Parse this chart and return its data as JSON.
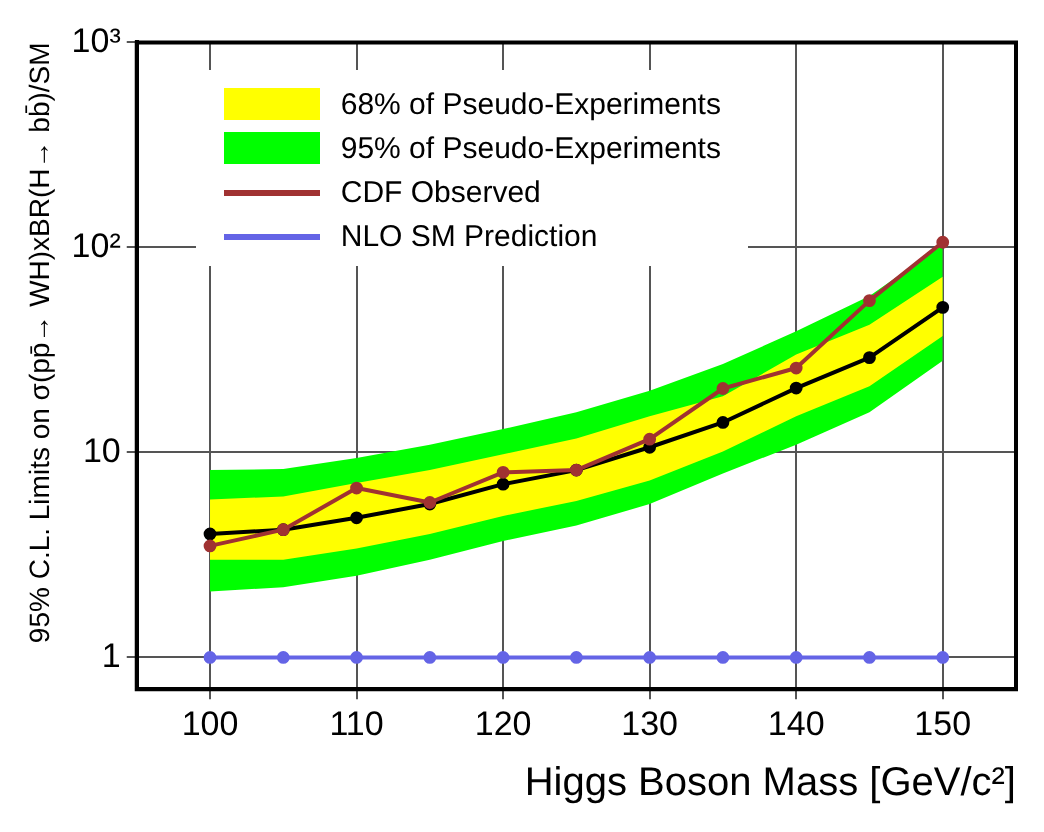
{
  "chart_data": {
    "type": "line",
    "xlabel": "Higgs Boson Mass [GeV/c²]",
    "ylabel": "95% C.L. Limits on σ(pp̄→ WH)xBR(H→ bb̄)/SM",
    "x": [
      100,
      105,
      110,
      115,
      120,
      125,
      130,
      135,
      140,
      145,
      150
    ],
    "series": [
      {
        "name": "68% of Pseudo-Experiments",
        "color": "#ffff00",
        "values": [
          null,
          null,
          null,
          null,
          null,
          null,
          null,
          null,
          null,
          null,
          null
        ],
        "lower": [
          3.0,
          3.0,
          3.4,
          4.0,
          4.9,
          5.8,
          7.3,
          10.1,
          15,
          21,
          37
        ],
        "upper": [
          5.9,
          6.1,
          7.1,
          8.2,
          9.8,
          11.7,
          15,
          18.8,
          30,
          42,
          72
        ]
      },
      {
        "name": "95% of Pseudo-Experiments",
        "color": "#00ff00",
        "values": [
          null,
          null,
          null,
          null,
          null,
          null,
          null,
          null,
          null,
          null,
          null
        ],
        "lower": [
          2.1,
          2.2,
          2.5,
          3.0,
          3.7,
          4.4,
          5.6,
          7.9,
          10.9,
          15.7,
          28
        ],
        "upper": [
          8.2,
          8.3,
          9.4,
          10.9,
          13,
          15.7,
          20,
          27,
          39,
          58,
          103
        ]
      },
      {
        "name": "CDF Observed",
        "color": "#a03232",
        "values": [
          3.5,
          4.2,
          6.7,
          5.7,
          8.0,
          8.2,
          11.6,
          20.5,
          25.8,
          55,
          106
        ]
      },
      {
        "name": "NLO SM Prediction",
        "color": "#6464e6",
        "values": [
          1,
          1,
          1,
          1,
          1,
          1,
          1,
          1,
          1,
          1,
          1
        ]
      },
      {
        "color": "#000000",
        "values": [
          4.0,
          4.2,
          4.8,
          5.6,
          7.0,
          8.2,
          10.6,
          14,
          20.6,
          29,
          51
        ]
      }
    ],
    "xlim": [
      95,
      155
    ],
    "xticks": [
      100,
      110,
      120,
      130,
      140,
      150
    ],
    "ylim": [
      0.7,
      1000
    ],
    "yticks": [
      1,
      10,
      {
        "value": 100,
        "label": "10²"
      },
      {
        "value": 1000,
        "label": "10³"
      }
    ],
    "log": "y",
    "grid": true,
    "legend": "top left",
    "marker": "circle",
    "line_style": "solid"
  }
}
